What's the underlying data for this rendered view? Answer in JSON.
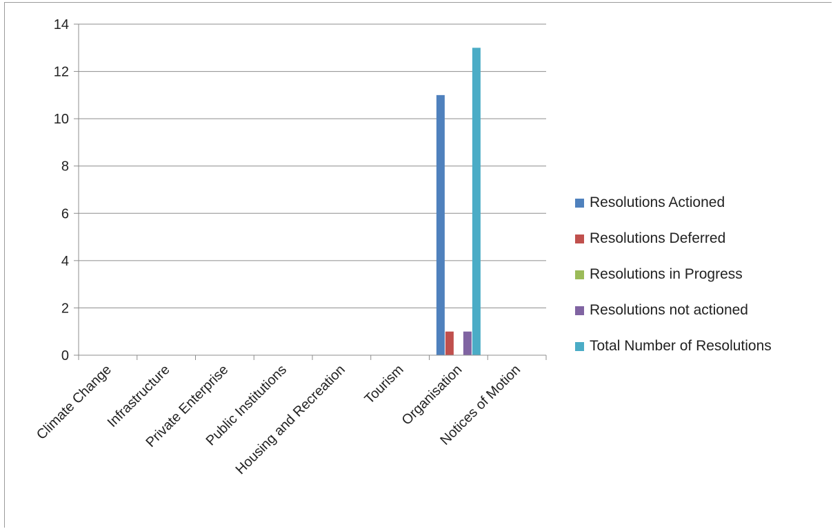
{
  "chart_data": {
    "type": "bar",
    "title": "",
    "xlabel": "",
    "ylabel": "",
    "ylim": [
      0,
      14
    ],
    "yticks": [
      0,
      2,
      4,
      6,
      8,
      10,
      12,
      14
    ],
    "grid": true,
    "legend_position": "right",
    "categories": [
      "Climate Change",
      "Infrastructure",
      "Private Enterprise",
      "Public Institutions",
      "Housing and Recreation",
      "Tourism",
      "Organisation",
      "Notices of Motion"
    ],
    "series": [
      {
        "name": "Resolutions Actioned",
        "color": "#4F81BD",
        "values": [
          0,
          0,
          0,
          0,
          0,
          0,
          11,
          0
        ]
      },
      {
        "name": "Resolutions Deferred",
        "color": "#C0504D",
        "values": [
          0,
          0,
          0,
          0,
          0,
          0,
          1,
          0
        ]
      },
      {
        "name": "Resolutions in Progress",
        "color": "#9BBB59",
        "values": [
          0,
          0,
          0,
          0,
          0,
          0,
          0,
          0
        ]
      },
      {
        "name": "Resolutions not actioned",
        "color": "#8064A2",
        "values": [
          0,
          0,
          0,
          0,
          0,
          0,
          1,
          0
        ]
      },
      {
        "name": "Total Number of Resolutions",
        "color": "#4BACC6",
        "values": [
          0,
          0,
          0,
          0,
          0,
          0,
          13,
          0
        ]
      }
    ]
  }
}
